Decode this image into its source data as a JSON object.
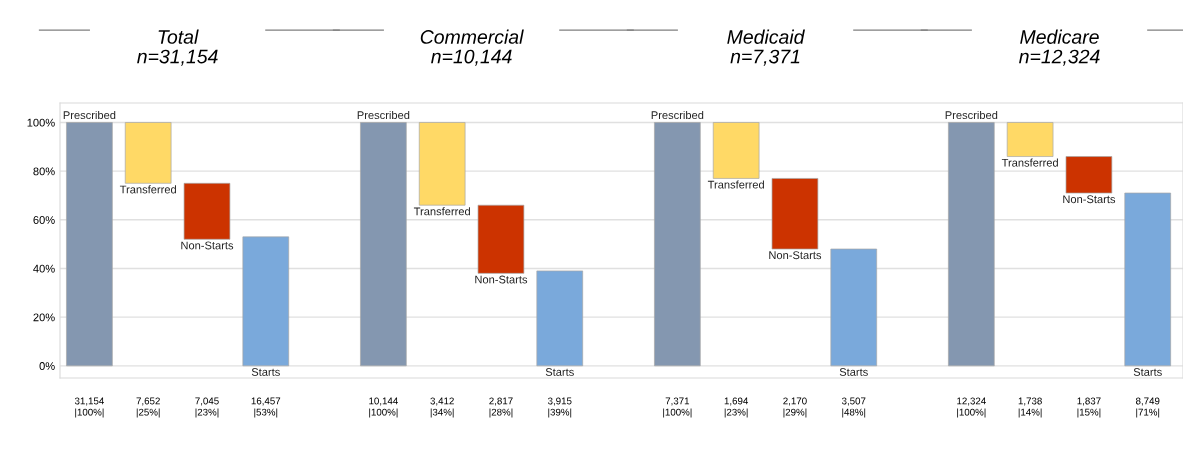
{
  "chart_data": {
    "type": "bar",
    "categories": [
      "Prescribed",
      "Transferred",
      "Non-Starts",
      "Starts",
      null,
      "Prescribed",
      "Transferred",
      "Non-Starts",
      "Starts",
      null,
      "Prescribed",
      "Transferred",
      "Non-Starts",
      "Starts",
      null,
      "Prescribed",
      "Transferred",
      "Non-Starts",
      "Starts"
    ],
    "values": [
      100,
      25,
      23,
      53,
      null,
      100,
      34,
      28,
      39,
      null,
      100,
      23,
      29,
      48,
      null,
      100,
      14,
      15,
      71
    ],
    "base": [
      0,
      75,
      52,
      0,
      null,
      0,
      66,
      38,
      0,
      null,
      0,
      77,
      48,
      0,
      null,
      0,
      86,
      71,
      0
    ],
    "colors": [
      "#8497b0",
      "#ffd966",
      "#cc3300",
      "#7aa9db",
      null,
      "#8497b0",
      "#ffd966",
      "#cc3300",
      "#7aa9db",
      null,
      "#8497b0",
      "#ffd966",
      "#cc3300",
      "#7aa9db",
      null,
      "#8497b0",
      "#ffd966",
      "#cc3300",
      "#7aa9db"
    ],
    "value_labels": [
      "31,154\n|100%|",
      "7,652\n|25%|",
      "7,045\n|23%|",
      "16,457\n|53%|",
      null,
      "10,144\n|100%|",
      "3,412\n|34%|",
      "2,817\n|28%|",
      "3,915\n|39%|",
      null,
      "7,371\n|100%|",
      "1,694\n|23%|",
      "2,170\n|29%|",
      "3,507\n|48%|",
      null,
      "12,324\n|100%|",
      "1,738\n|14%|",
      "1,837\n|15%|",
      "8,749\n|71%|"
    ],
    "ylim": [
      -5,
      108
    ],
    "yticks": [
      {
        "value": 0,
        "label": "0%"
      },
      {
        "value": 20,
        "label": "20%"
      },
      {
        "value": 40,
        "label": "40%"
      },
      {
        "value": 60,
        "label": "60%"
      },
      {
        "value": 80,
        "label": "80%"
      },
      {
        "value": 100,
        "label": "100%"
      }
    ],
    "grid": "y",
    "legend": false,
    "annotations": [
      "Total\nn=31,154",
      "Commercial\nn=10,144",
      "Medicaid\nn=7,371",
      "Medicare\nn=12,324"
    ]
  }
}
